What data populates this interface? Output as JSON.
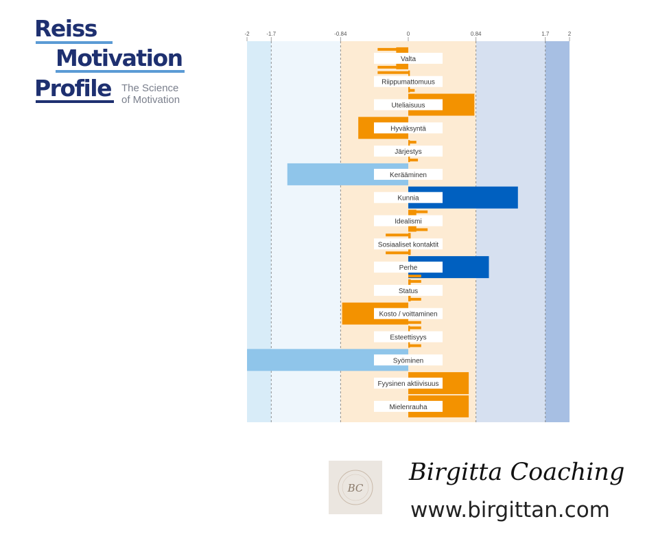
{
  "logo": {
    "line1": "Reiss",
    "line2": "Motivation",
    "line3": "Profile",
    "tagline1": "The Science",
    "tagline2": "of Motivation"
  },
  "brand": {
    "name": "Birgitta Coaching",
    "url": "www.birgittan.com",
    "badge_initials": "BC"
  },
  "colors": {
    "navy": "#1e3070",
    "accent_blue": "#5b9bd5",
    "orange": "#f39200",
    "dark_blue": "#0060c0",
    "light_blue_bar": "#8fc5ea",
    "band_far_low": "#d8ecf8",
    "band_low": "#eef6fc",
    "band_mid": "#fdebd3",
    "band_high": "#d6e0f0",
    "band_far_high": "#a7bfe3"
  },
  "chart_data": {
    "type": "bar",
    "orientation": "horizontal",
    "xlim": [
      -2,
      2
    ],
    "ticks": [
      -2,
      -1.7,
      -0.84,
      0,
      0.84,
      1.7,
      2
    ],
    "tick_labels": [
      "-2",
      "-1.7",
      "-0.84",
      "0",
      "0.84",
      "1.7",
      "2"
    ],
    "categories": [
      "Valta",
      "Riippumattomuus",
      "Uteliaisuus",
      "Hyväksyntä",
      "Järjestys",
      "Kerääminen",
      "Kunnia",
      "Idealismi",
      "Sosiaaliset kontaktit",
      "Perhe",
      "Status",
      "Kosto / voittaminen",
      "Esteettisyys",
      "Syöminen",
      "Fyysinen aktiivisuus",
      "Mielenrauha"
    ],
    "values": [
      -0.15,
      0.02,
      0.82,
      -0.62,
      0.02,
      -1.5,
      1.36,
      0.1,
      0.03,
      1.0,
      0.03,
      -0.82,
      0.02,
      -2.0,
      0.75,
      0.75
    ],
    "colors": [
      "orange",
      "orange",
      "orange",
      "orange",
      "orange",
      "light_blue",
      "dark_blue",
      "orange",
      "orange",
      "dark_blue",
      "orange",
      "orange",
      "orange",
      "light_blue",
      "orange",
      "orange"
    ],
    "markers_upper": [
      -0.38,
      -0.38,
      0.1,
      -0.04,
      0.1,
      0.0,
      0.0,
      0.24,
      -0.28,
      0.0,
      0.16,
      0.0,
      0.16,
      0.0,
      0.0,
      0.0
    ],
    "markers_lower": [
      -0.38,
      0.08,
      0.1,
      -0.04,
      0.12,
      0.0,
      0.0,
      0.24,
      -0.28,
      0.16,
      0.16,
      0.16,
      0.16,
      0.0,
      0.0,
      0.0
    ],
    "grid": "dashed lines at tick values",
    "xlabel": "",
    "ylabel": "",
    "title": ""
  }
}
